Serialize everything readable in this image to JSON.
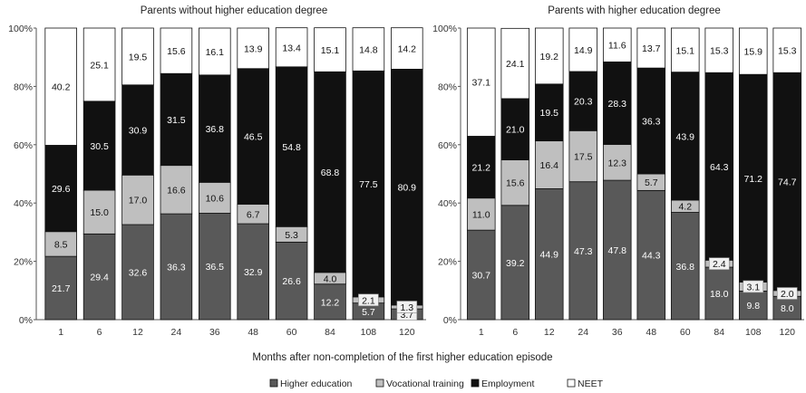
{
  "chart_data": {
    "type": "bar",
    "stacked": true,
    "normalized": true,
    "xlabel": "Months after non-completion of the first higher education episode",
    "categories": [
      "1",
      "6",
      "12",
      "24",
      "36",
      "48",
      "60",
      "84",
      "108",
      "120"
    ],
    "ylim": [
      0,
      100
    ],
    "y_ticks": [
      "0%",
      "20%",
      "40%",
      "60%",
      "80%",
      "100%"
    ],
    "legend_position": "bottom",
    "legend": [
      {
        "name": "Higher education",
        "color": "#595959"
      },
      {
        "name": "Vocational training",
        "color": "#bfbfbf"
      },
      {
        "name": "Employment",
        "color": "#111111"
      },
      {
        "name": "NEET",
        "color": "#ffffff"
      }
    ],
    "panels": [
      {
        "title": "Parents without higher education degree",
        "series": [
          {
            "name": "Higher education",
            "values": [
              21.7,
              29.4,
              32.6,
              36.3,
              36.5,
              32.9,
              26.6,
              12.2,
              5.7,
              3.7
            ]
          },
          {
            "name": "Vocational training",
            "values": [
              8.5,
              15.0,
              17.0,
              16.6,
              10.6,
              6.7,
              5.3,
              4.0,
              2.1,
              1.3
            ]
          },
          {
            "name": "Employment",
            "values": [
              29.6,
              30.5,
              30.9,
              31.5,
              36.8,
              46.5,
              54.8,
              68.8,
              77.5,
              80.9
            ]
          },
          {
            "name": "NEET",
            "values": [
              40.2,
              25.1,
              19.5,
              15.6,
              16.1,
              13.9,
              13.4,
              15.1,
              14.8,
              14.2
            ]
          }
        ]
      },
      {
        "title": "Parents with higher education degree",
        "series": [
          {
            "name": "Higher education",
            "values": [
              30.7,
              39.2,
              44.9,
              47.3,
              47.8,
              44.3,
              36.8,
              18.0,
              9.8,
              8.0
            ]
          },
          {
            "name": "Vocational training",
            "values": [
              11.0,
              15.6,
              16.4,
              17.5,
              12.3,
              5.7,
              4.2,
              2.4,
              3.1,
              2.0
            ]
          },
          {
            "name": "Employment",
            "values": [
              21.2,
              21.0,
              19.5,
              20.3,
              28.3,
              36.3,
              43.9,
              64.3,
              71.2,
              74.7
            ]
          },
          {
            "name": "NEET",
            "values": [
              37.1,
              24.1,
              19.2,
              14.9,
              11.6,
              13.7,
              15.1,
              15.3,
              15.9,
              15.3
            ]
          }
        ]
      }
    ]
  }
}
